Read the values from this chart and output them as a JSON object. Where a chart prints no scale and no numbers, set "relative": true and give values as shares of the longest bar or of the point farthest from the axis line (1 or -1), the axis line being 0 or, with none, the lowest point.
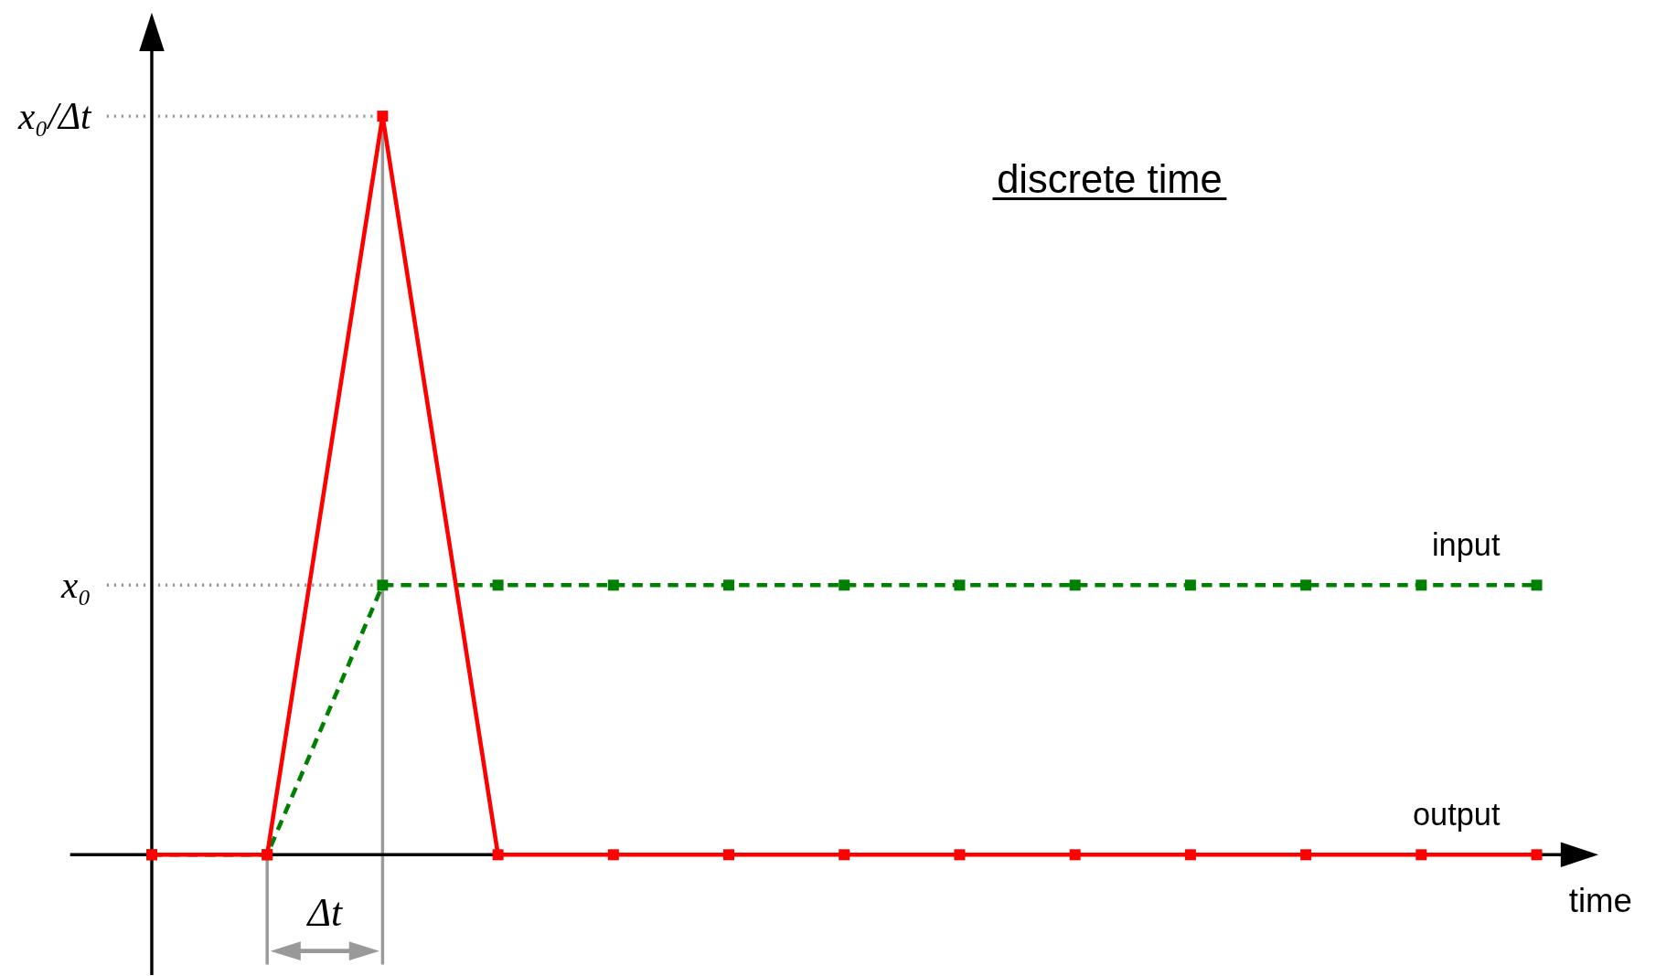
{
  "chart_data": {
    "type": "line",
    "title": "discrete time",
    "xlabel": "time",
    "relative": true,
    "marker": "square",
    "categories": [
      null,
      null,
      null,
      null,
      null,
      null,
      null,
      null,
      null,
      null,
      null,
      null,
      null
    ],
    "series": [
      {
        "name": "input",
        "color": "#008000",
        "line_style": "dashed",
        "values": [
          0,
          0,
          0.365,
          0.365,
          0.365,
          0.365,
          0.365,
          0.365,
          0.365,
          0.365,
          0.365,
          0.365,
          0.365
        ]
      },
      {
        "name": "output",
        "color": "#ff0000",
        "line_style": "solid",
        "values": [
          0,
          0,
          1,
          0,
          0,
          0,
          0,
          0,
          0,
          0,
          0,
          0,
          0
        ]
      }
    ],
    "ref_lines": [
      {
        "axis": "y",
        "value": 1,
        "label": "x₀/Δt",
        "color": "#999999",
        "line_style": "dotted"
      },
      {
        "axis": "y",
        "value": 0.365,
        "label": "x₀",
        "color": "#999999",
        "line_style": "dotted"
      }
    ],
    "annotations": [
      "Δt"
    ]
  }
}
